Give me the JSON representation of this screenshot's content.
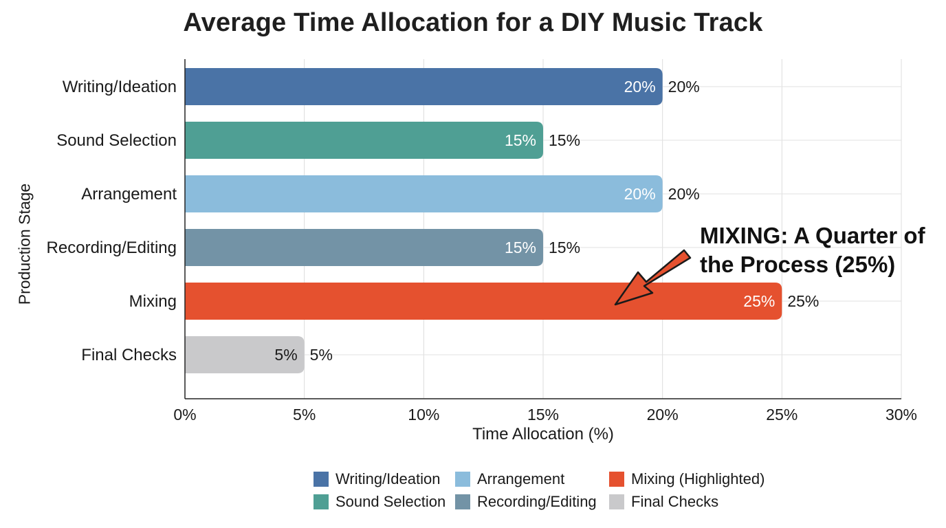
{
  "chart_data": {
    "type": "bar",
    "orientation": "horizontal",
    "title": "Average Time Allocation for a DIY Music Track",
    "xlabel": "Time Allocation (%)",
    "ylabel": "Production Stage",
    "xlim": [
      0,
      30
    ],
    "x_ticks": [
      "0%",
      "5%",
      "10%",
      "15%",
      "20%",
      "25%",
      "30%"
    ],
    "grid": true,
    "legend_position": "bottom",
    "categories": [
      "Writing/Ideation",
      "Sound Selection",
      "Arrangement",
      "Recording/Editing",
      "Mixing",
      "Final Checks"
    ],
    "values": [
      20,
      15,
      20,
      15,
      25,
      5
    ],
    "inner_labels": [
      "20%",
      "15%",
      "20%",
      "15%",
      "25%",
      "5%"
    ],
    "outer_labels": [
      "20%",
      "15%",
      "20%",
      "15%",
      "25%",
      "5%"
    ],
    "colors": [
      "#4a73a6",
      "#4f9f94",
      "#8bbcdc",
      "#7393a6",
      "#e5512f",
      "#c9c9cb"
    ],
    "legend": [
      {
        "label": "Writing/Ideation",
        "color": "#4a73a6"
      },
      {
        "label": "Sound Selection",
        "color": "#4f9f94"
      },
      {
        "label": "Arrangement",
        "color": "#8bbcdc"
      },
      {
        "label": "Recording/Editing",
        "color": "#7393a6"
      },
      {
        "label": "Mixing (Highlighted)",
        "color": "#e5512f"
      },
      {
        "label": "Final Checks",
        "color": "#c9c9cb"
      }
    ],
    "annotation": {
      "lines": [
        "MIXING: A Quarter of",
        "the Process (25%)"
      ],
      "target_category": "Mixing",
      "arrow_color": "#e5512f"
    }
  }
}
